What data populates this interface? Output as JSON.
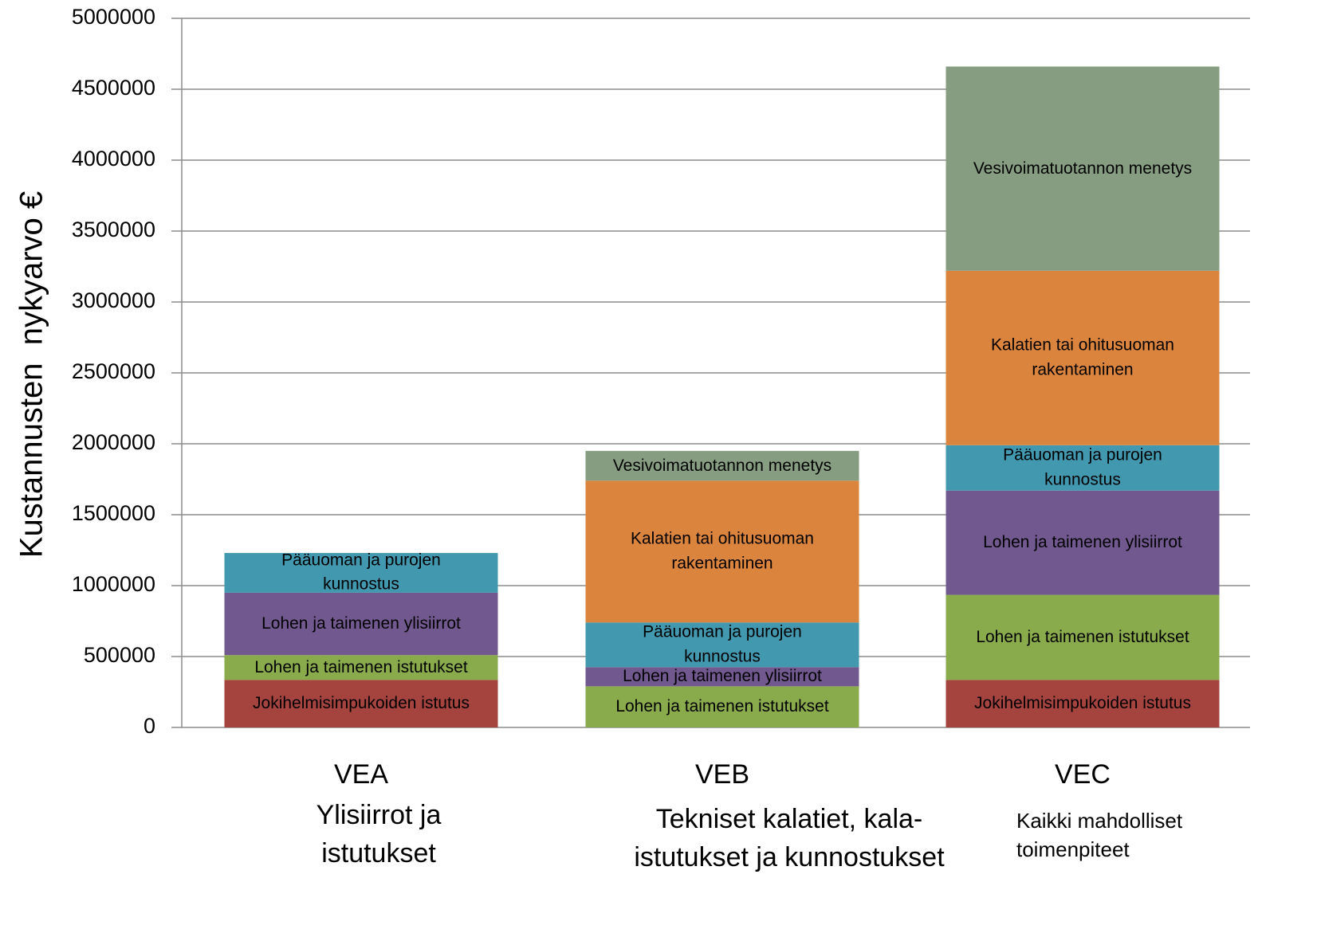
{
  "chart_data": {
    "type": "stacked_bar",
    "y_axis_label": "Kustannusten  nykyarvo €",
    "categories": [
      "VEA",
      "VEB",
      "VEC"
    ],
    "category_descriptions": [
      "Ylisiirrot ja istutukset",
      "Tekniset kalatiet, kala-istutukset ja kunnostukset",
      "Kaikki mahdolliset toimenpiteet"
    ],
    "series": [
      {
        "name": "Jokihelmisimpukoiden istutus",
        "color": "#a5443f",
        "values": [
          335000,
          null,
          335000
        ]
      },
      {
        "name": "Lohen ja taimenen istutukset",
        "color": "#8aab4b",
        "values": [
          175000,
          290000,
          600000
        ]
      },
      {
        "name": "Lohen ja taimenen ylisiirrot",
        "color": "#71588f",
        "values": [
          440000,
          135000,
          735000
        ]
      },
      {
        "name": "Pääuoman  ja purojen kunnostus",
        "color": "#4298af",
        "values": [
          280000,
          315000,
          320000
        ]
      },
      {
        "name": "Kalatien tai ohitusuoman rakentaminen",
        "color": "#db843d",
        "values": [
          null,
          1000000,
          1230000
        ]
      },
      {
        "name": "Vesivoimatuotannon menetys",
        "color": "#869d82",
        "values": [
          null,
          210000,
          1440000
        ]
      }
    ],
    "ylim": [
      0,
      5000000
    ],
    "yticks": [
      0,
      500000,
      1000000,
      1500000,
      2000000,
      2500000,
      3000000,
      3500000,
      4000000,
      4500000,
      5000000
    ],
    "grid": true
  }
}
